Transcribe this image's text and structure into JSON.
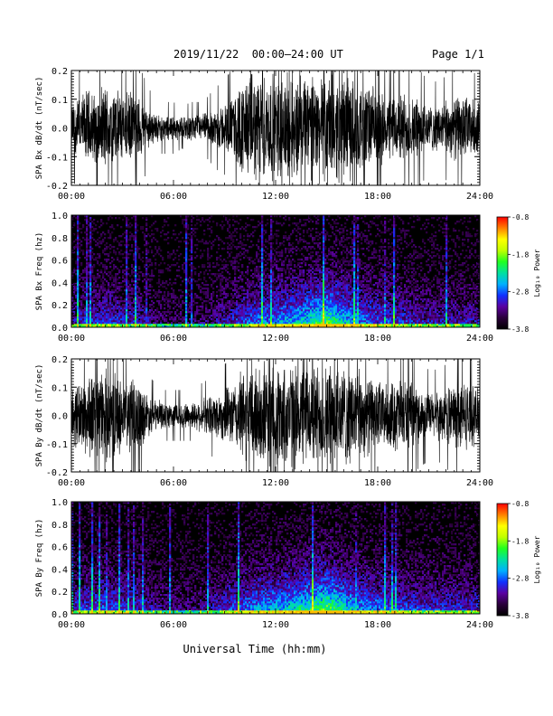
{
  "header": {
    "title": "2019/11/22  00:00–24:00 UT",
    "page": "Page 1/1"
  },
  "x_axis_title": "Universal Time (hh:mm)",
  "colors": {
    "trace": "#000000",
    "spectrogram_background": "#000000"
  },
  "colorbar": {
    "label": "Log₁₀ Power",
    "ticks": [
      "-0.8",
      "-1.8",
      "-2.8",
      "-3.8"
    ],
    "tick_values": [
      -0.8,
      -1.8,
      -2.8,
      -3.8
    ],
    "range": [
      -3.8,
      -0.8
    ],
    "colormap": [
      "#000000",
      "#2a003a",
      "#5a00a0",
      "#1030ff",
      "#00b0ff",
      "#00e0a0",
      "#20ff20",
      "#c0ff00",
      "#ffff00",
      "#ff8000",
      "#ff0000"
    ]
  },
  "chart_data": [
    {
      "type": "line",
      "ylabel": "SPA Bx dB/dt (nT/sec)",
      "xlim": [
        0,
        24
      ],
      "ylim": [
        -0.2,
        0.2
      ],
      "xticks": [
        "00:00",
        "06:00",
        "12:00",
        "18:00",
        "24:00"
      ],
      "xtick_values": [
        0,
        6,
        12,
        18,
        24
      ],
      "yticks": [
        "0.2",
        "0.1",
        "0.0",
        "-0.1",
        "-0.2"
      ],
      "ytick_values": [
        0.2,
        0.1,
        0.0,
        -0.1,
        -0.2
      ],
      "envelope": {
        "x_hours": [
          0,
          0.5,
          1,
          1.5,
          2,
          2.5,
          3,
          3.5,
          4,
          4.5,
          5,
          5.5,
          6,
          6.5,
          7,
          7.5,
          8,
          8.5,
          9,
          9.5,
          10,
          10.5,
          11,
          11.5,
          12,
          12.5,
          13,
          13.5,
          14,
          14.5,
          15,
          15.5,
          16,
          16.5,
          17,
          17.5,
          18,
          18.5,
          19,
          19.5,
          20,
          20.5,
          21,
          21.5,
          22,
          22.5,
          23,
          23.5,
          24
        ],
        "amplitude": [
          0.1,
          0.12,
          0.15,
          0.13,
          0.17,
          0.15,
          0.13,
          0.14,
          0.12,
          0.08,
          0.05,
          0.05,
          0.05,
          0.04,
          0.05,
          0.05,
          0.06,
          0.08,
          0.09,
          0.12,
          0.18,
          0.2,
          0.2,
          0.2,
          0.2,
          0.2,
          0.2,
          0.2,
          0.2,
          0.2,
          0.2,
          0.2,
          0.2,
          0.19,
          0.17,
          0.16,
          0.15,
          0.12,
          0.13,
          0.14,
          0.12,
          0.11,
          0.09,
          0.09,
          0.1,
          0.12,
          0.13,
          0.11,
          0.1
        ]
      }
    },
    {
      "type": "heatmap",
      "ylabel": "SPA Bx Freq (hz)",
      "xlim": [
        0,
        24
      ],
      "ylim": [
        0,
        1.0
      ],
      "xticks": [
        "00:00",
        "06:00",
        "12:00",
        "18:00",
        "24:00"
      ],
      "xtick_values": [
        0,
        6,
        12,
        18,
        24
      ],
      "yticks": [
        "1.0",
        "0.8",
        "0.6",
        "0.4",
        "0.2",
        "0.0"
      ],
      "ytick_values": [
        1.0,
        0.8,
        0.6,
        0.4,
        0.2,
        0.0
      ],
      "zlim": [
        -3.8,
        -0.8
      ],
      "activity": {
        "x_hours": [
          0,
          1,
          2,
          3,
          4,
          5,
          6,
          7,
          8,
          9,
          10,
          11,
          12,
          13,
          14,
          15,
          16,
          17,
          18,
          19,
          20,
          21,
          22,
          23,
          24
        ],
        "level": [
          0.3,
          0.35,
          0.4,
          0.35,
          0.3,
          0.2,
          0.15,
          0.15,
          0.2,
          0.3,
          0.4,
          0.5,
          0.55,
          0.6,
          0.7,
          0.85,
          0.65,
          0.5,
          0.45,
          0.4,
          0.35,
          0.3,
          0.3,
          0.3,
          0.3
        ]
      }
    },
    {
      "type": "line",
      "ylabel": "SPA By dB/dt (nT/sec)",
      "xlim": [
        0,
        24
      ],
      "ylim": [
        -0.2,
        0.2
      ],
      "xticks": [
        "00:00",
        "06:00",
        "12:00",
        "18:00",
        "24:00"
      ],
      "xtick_values": [
        0,
        6,
        12,
        18,
        24
      ],
      "yticks": [
        "0.2",
        "0.1",
        "0.0",
        "-0.1",
        "-0.2"
      ],
      "ytick_values": [
        0.2,
        0.1,
        0.0,
        -0.1,
        -0.2
      ],
      "envelope": {
        "x_hours": [
          0,
          0.5,
          1,
          1.5,
          2,
          2.5,
          3,
          3.5,
          4,
          4.5,
          5,
          5.5,
          6,
          6.5,
          7,
          7.5,
          8,
          8.5,
          9,
          9.5,
          10,
          10.5,
          11,
          11.5,
          12,
          12.5,
          13,
          13.5,
          14,
          14.5,
          15,
          15.5,
          16,
          16.5,
          17,
          17.5,
          18,
          18.5,
          19,
          19.5,
          20,
          20.5,
          21,
          21.5,
          22,
          22.5,
          23,
          23.5,
          24
        ],
        "amplitude": [
          0.12,
          0.13,
          0.18,
          0.16,
          0.18,
          0.17,
          0.14,
          0.15,
          0.13,
          0.08,
          0.06,
          0.05,
          0.05,
          0.05,
          0.05,
          0.06,
          0.07,
          0.09,
          0.1,
          0.12,
          0.17,
          0.2,
          0.2,
          0.2,
          0.2,
          0.2,
          0.2,
          0.2,
          0.2,
          0.2,
          0.2,
          0.2,
          0.2,
          0.19,
          0.17,
          0.15,
          0.14,
          0.12,
          0.14,
          0.15,
          0.12,
          0.1,
          0.09,
          0.09,
          0.1,
          0.13,
          0.14,
          0.12,
          0.1
        ]
      }
    },
    {
      "type": "heatmap",
      "ylabel": "SPA By Freq (hz)",
      "xlim": [
        0,
        24
      ],
      "ylim": [
        0,
        1.0
      ],
      "xticks": [
        "00:00",
        "06:00",
        "12:00",
        "18:00",
        "24:00"
      ],
      "xtick_values": [
        0,
        6,
        12,
        18,
        24
      ],
      "yticks": [
        "1.0",
        "0.8",
        "0.6",
        "0.4",
        "0.2",
        "0.0"
      ],
      "ytick_values": [
        1.0,
        0.8,
        0.6,
        0.4,
        0.2,
        0.0
      ],
      "zlim": [
        -3.8,
        -0.8
      ],
      "activity": {
        "x_hours": [
          0,
          1,
          2,
          3,
          4,
          5,
          6,
          7,
          8,
          9,
          10,
          11,
          12,
          13,
          14,
          15,
          16,
          17,
          18,
          19,
          20,
          21,
          22,
          23,
          24
        ],
        "level": [
          0.35,
          0.4,
          0.45,
          0.4,
          0.35,
          0.25,
          0.2,
          0.2,
          0.25,
          0.35,
          0.45,
          0.55,
          0.6,
          0.65,
          0.75,
          0.9,
          0.7,
          0.55,
          0.5,
          0.45,
          0.4,
          0.35,
          0.35,
          0.35,
          0.35
        ]
      }
    }
  ]
}
